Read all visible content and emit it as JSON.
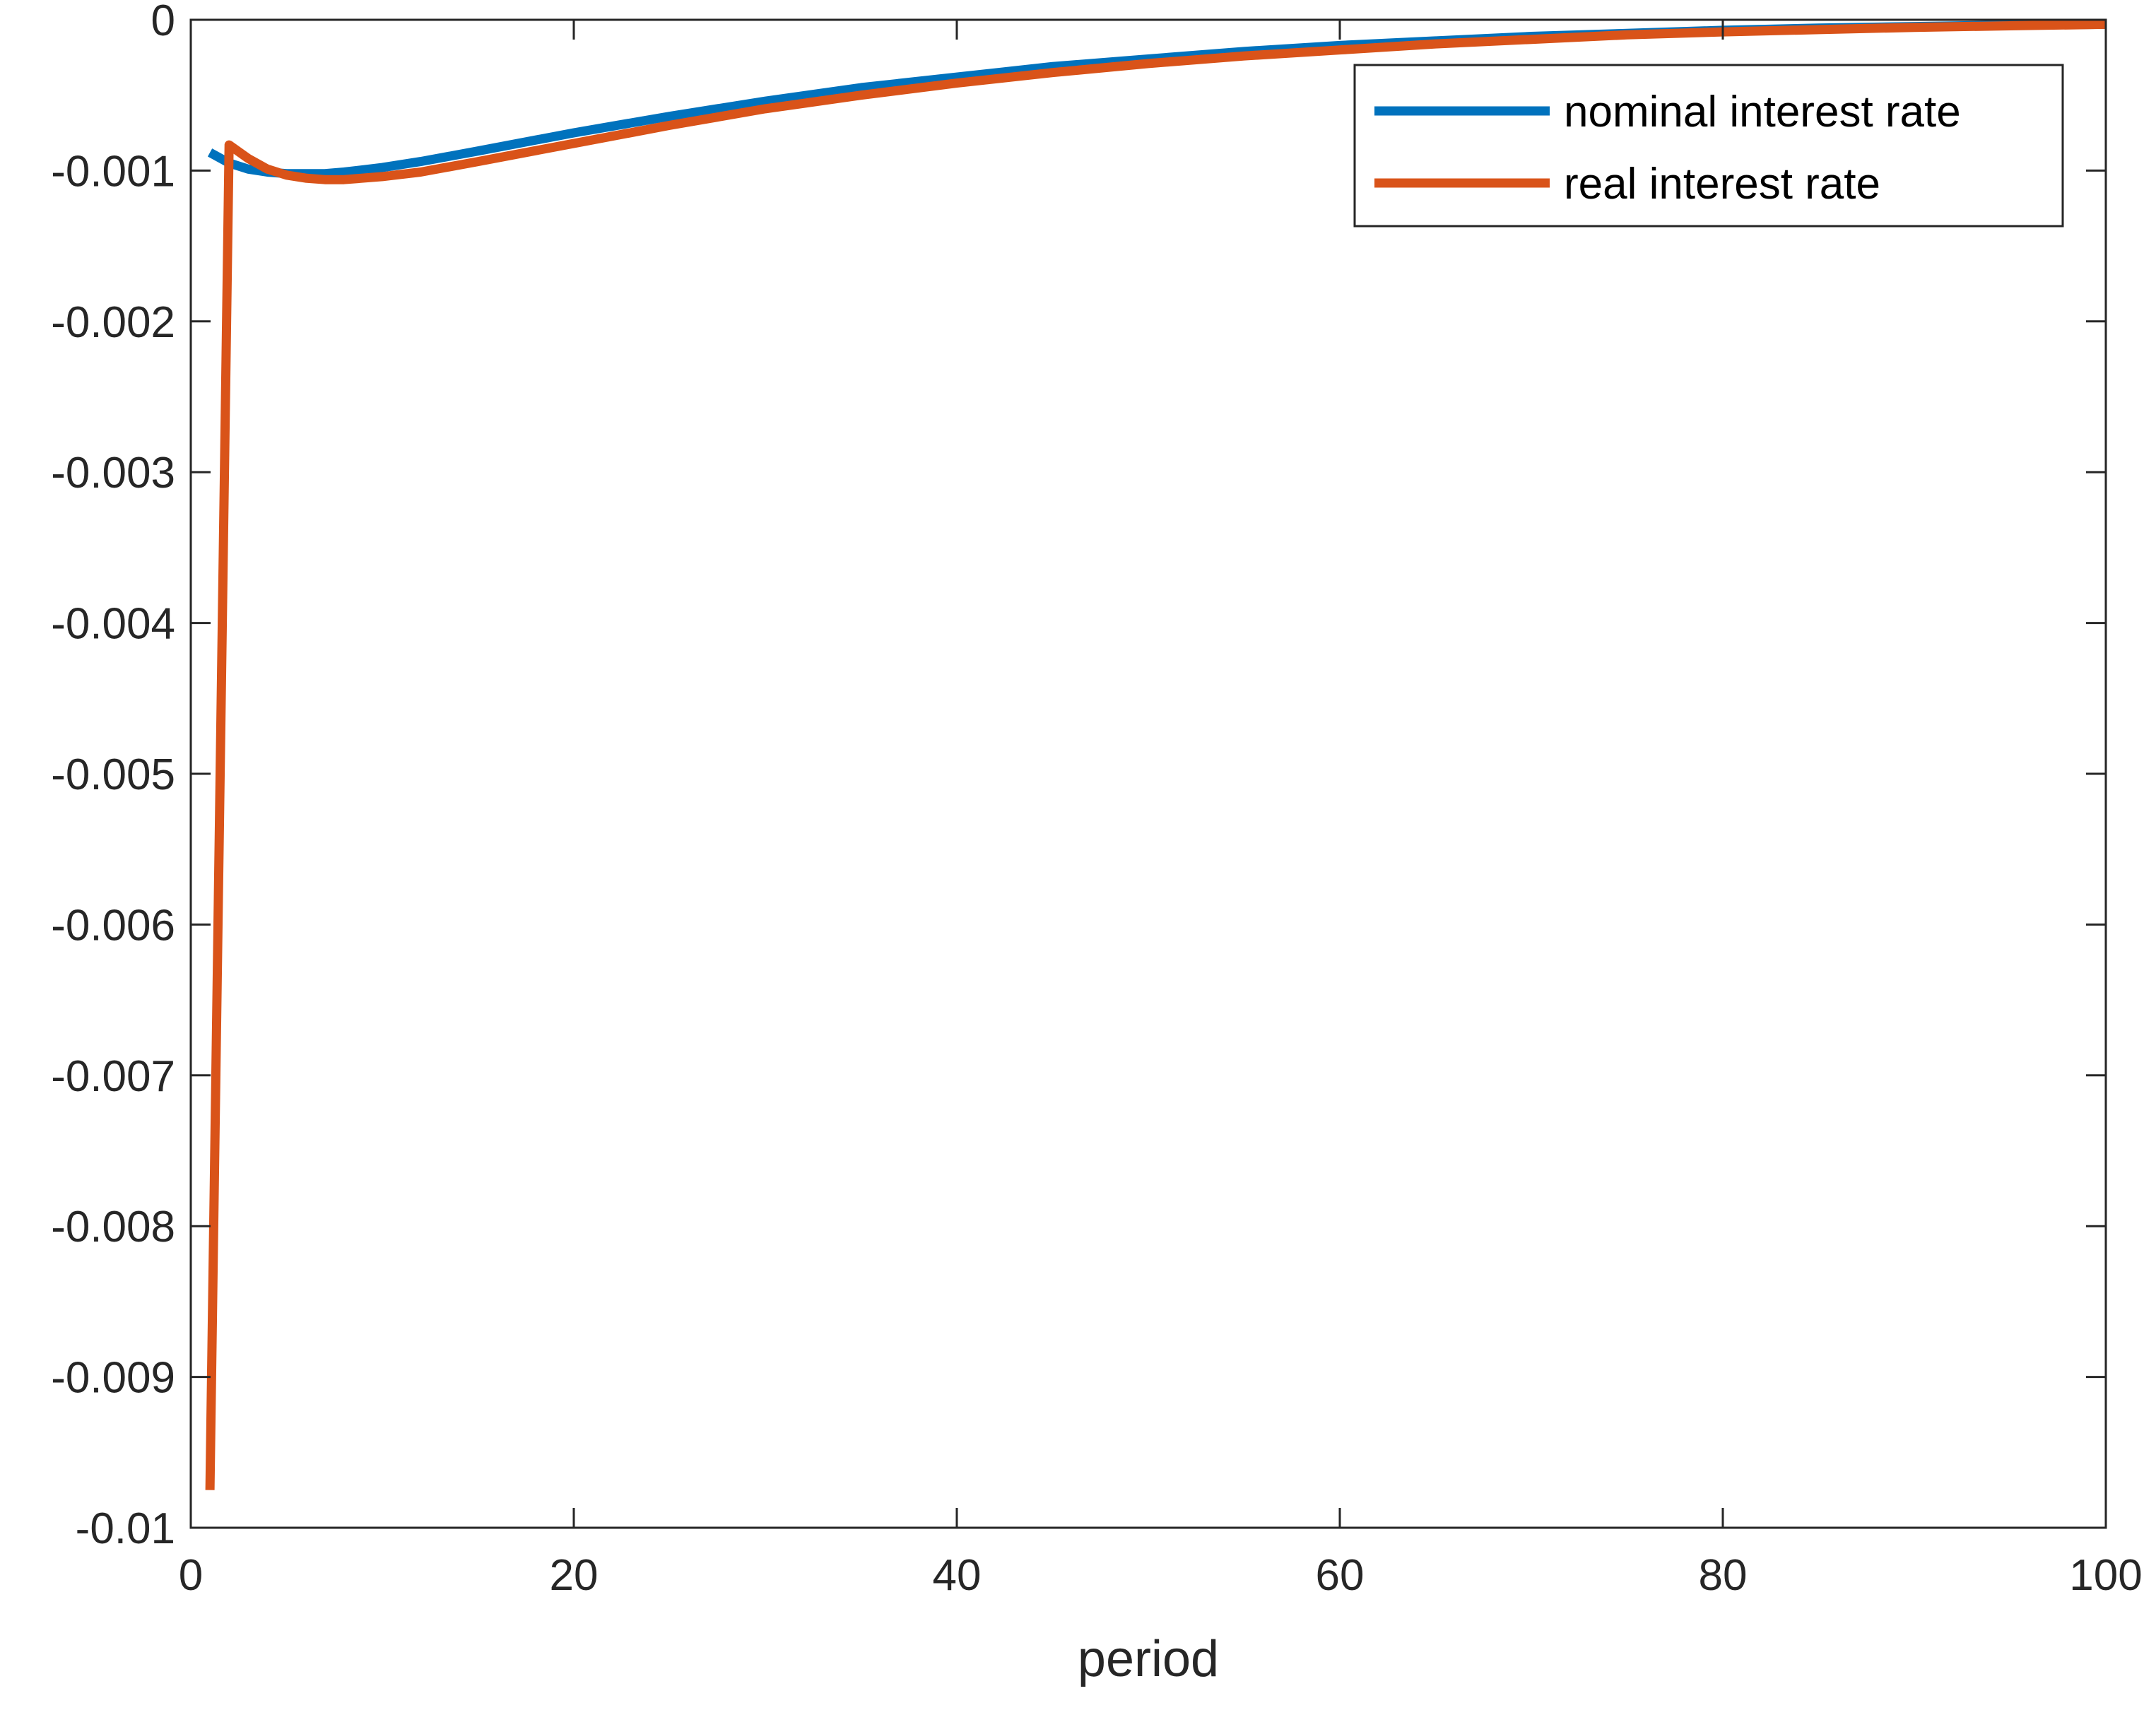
{
  "chart_data": {
    "type": "line",
    "title": "",
    "xlabel": "period",
    "ylabel": "",
    "xlim": [
      0,
      100
    ],
    "ylim": [
      -0.01,
      0
    ],
    "xticks": [
      0,
      20,
      40,
      60,
      80,
      100
    ],
    "xtick_labels": [
      "0",
      "20",
      "40",
      "60",
      "80",
      "100"
    ],
    "yticks": [
      0,
      -0.001,
      -0.002,
      -0.003,
      -0.004,
      -0.005,
      -0.006,
      -0.007,
      -0.008,
      -0.009,
      -0.01
    ],
    "ytick_labels": [
      "0",
      "-0.001",
      "-0.002",
      "-0.003",
      "-0.004",
      "-0.005",
      "-0.006",
      "-0.007",
      "-0.008",
      "-0.009",
      "-0.01"
    ],
    "grid": false,
    "legend_position": "top-right",
    "series": [
      {
        "name": "nominal interest rate",
        "color": "#0072BD",
        "x": [
          1,
          2,
          3,
          4,
          5,
          6,
          7,
          8,
          10,
          12,
          15,
          20,
          25,
          30,
          35,
          40,
          45,
          50,
          55,
          60,
          65,
          70,
          75,
          80,
          85,
          90,
          95,
          100
        ],
        "y": [
          -0.00088,
          -0.00095,
          -0.00099,
          -0.00101,
          -0.00102,
          -0.00102,
          -0.00102,
          -0.00101,
          -0.00098,
          -0.00094,
          -0.00087,
          -0.00075,
          -0.00064,
          -0.00054,
          -0.00045,
          -0.00038,
          -0.00031,
          -0.00026,
          -0.00021,
          -0.00017,
          -0.00014,
          -0.00011,
          -9e-05,
          -7e-05,
          -5.5e-05,
          -4.5e-05,
          -3.5e-05,
          -3e-05
        ]
      },
      {
        "name": "real interest rate",
        "color": "#D95319",
        "x": [
          1,
          2,
          3,
          4,
          5,
          6,
          7,
          8,
          10,
          12,
          15,
          20,
          25,
          30,
          35,
          40,
          45,
          50,
          55,
          60,
          65,
          70,
          75,
          80,
          85,
          90,
          95,
          100
        ],
        "y": [
          -0.00975,
          -0.00083,
          -0.00092,
          -0.00099,
          -0.00103,
          -0.00105,
          -0.00106,
          -0.00106,
          -0.00104,
          -0.00101,
          -0.00094,
          -0.00082,
          -0.0007,
          -0.00059,
          -0.0005,
          -0.00042,
          -0.00035,
          -0.00029,
          -0.00024,
          -0.0002,
          -0.00016,
          -0.00013,
          -0.0001,
          -8e-05,
          -6.5e-05,
          -5e-05,
          -4e-05,
          -3e-05
        ]
      }
    ]
  }
}
